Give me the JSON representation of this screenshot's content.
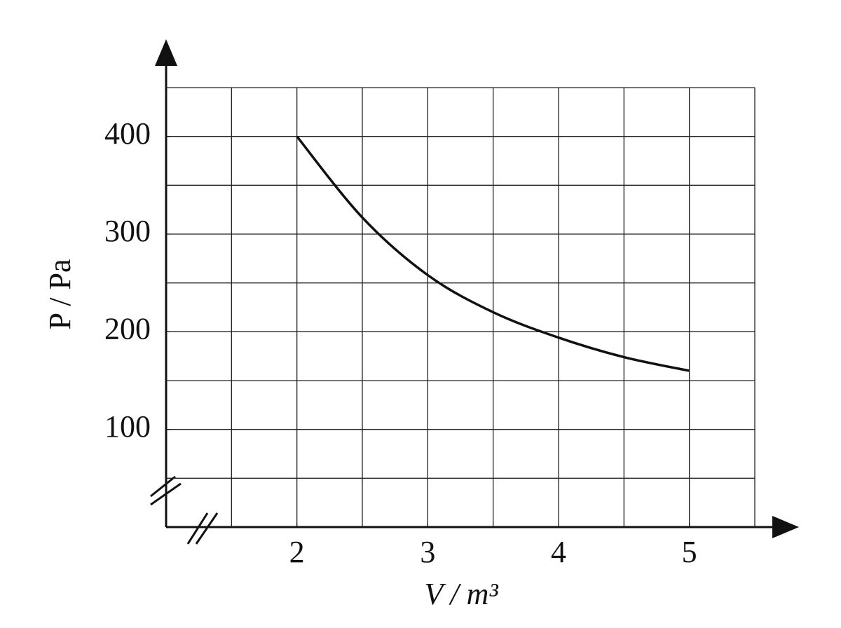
{
  "chart_data": {
    "type": "line",
    "x_label": "V / m³",
    "y_label": "P / Pa",
    "x": [
      2,
      2.5,
      3,
      3.5,
      4,
      4.5,
      5
    ],
    "series": [
      {
        "color": "#111111",
        "values": [
          400,
          317,
          258,
          220,
          194,
          174,
          160
        ]
      }
    ],
    "xlim": [
      1,
      5.5
    ],
    "ylim": [
      0,
      450
    ],
    "xticks": [
      2,
      3,
      4,
      5
    ],
    "yticks": [
      100,
      200,
      300,
      400
    ],
    "xgrid": [
      1.5,
      2,
      2.5,
      3,
      3.5,
      4,
      4.5,
      5,
      5.5
    ],
    "ygrid": [
      50,
      100,
      150,
      200,
      250,
      300,
      350,
      400,
      450
    ],
    "grid": true
  }
}
